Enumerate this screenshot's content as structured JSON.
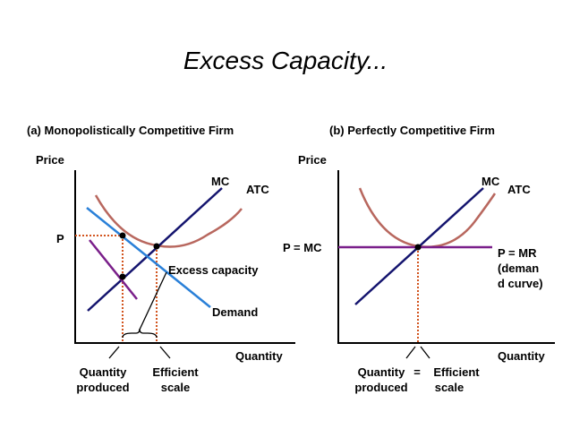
{
  "title": "Excess Capacity...",
  "panel_a": {
    "heading": "(a) Monopolistically Competitive Firm",
    "y_axis_label": "Price",
    "x_axis_label": "Quantity",
    "mc_label": "MC",
    "atc_label": "ATC",
    "demand_label": "Demand",
    "price_label": "P",
    "excess_label": "Excess capacity",
    "quantity_label": [
      "Quantity",
      "produced"
    ],
    "efficient_label": [
      "Efficient",
      "scale"
    ]
  },
  "panel_b": {
    "heading": "(b) Perfectly Competitive Firm",
    "y_axis_label": "Price",
    "x_axis_label": "Quantity",
    "mc_label": "MC",
    "atc_label": "ATC",
    "price_label": "P = MC",
    "demand_label": [
      "P = MR",
      "(deman",
      "d curve)"
    ],
    "quantity_label": [
      "Quantity",
      "produced"
    ],
    "equals": "=",
    "efficient_label": [
      "Efficient",
      "scale"
    ]
  }
}
